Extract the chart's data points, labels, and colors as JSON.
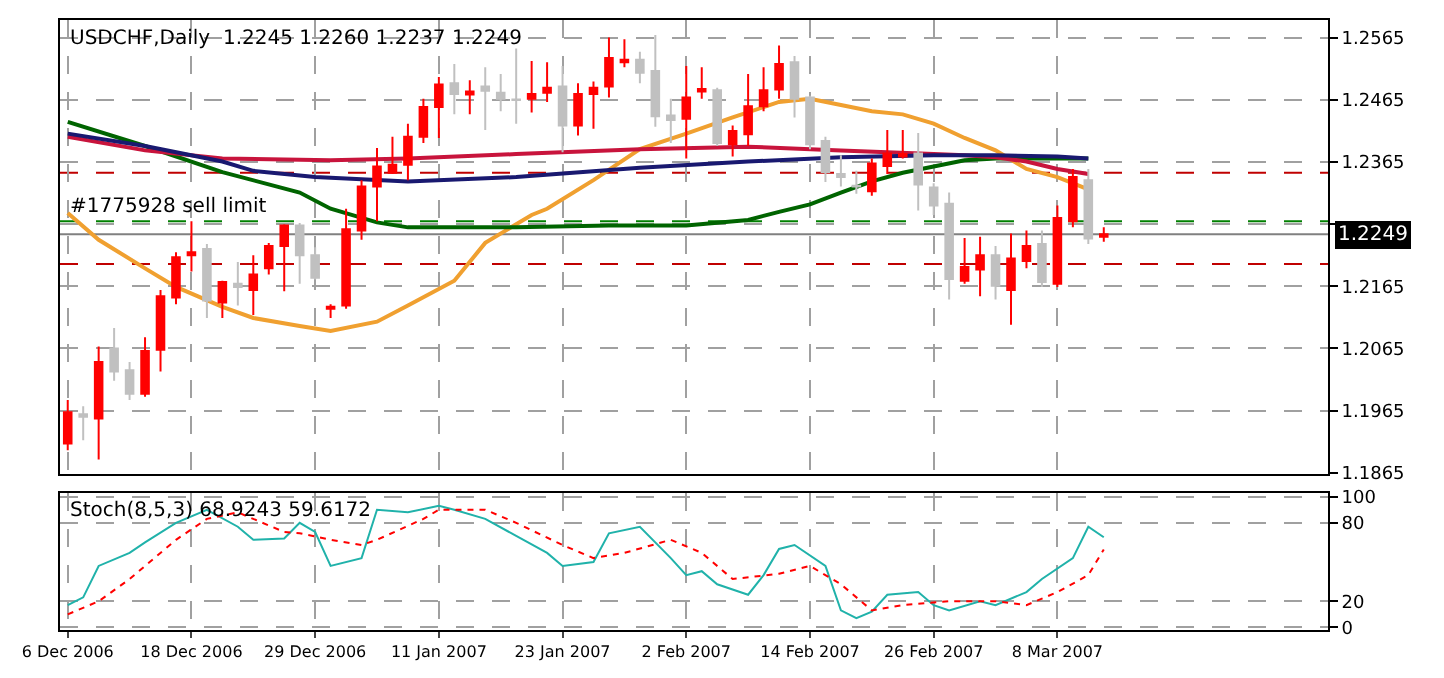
{
  "chart_data": [
    {
      "type": "candlestick",
      "title": "USDCHF,Daily  1.2245 1.2260 1.2237 1.2249",
      "tick_labels": "y",
      "grid": true,
      "marker": "none",
      "categories": [
        null,
        null,
        null,
        null,
        null,
        null,
        null,
        null,
        null,
        null,
        null,
        null,
        null,
        null,
        null,
        null,
        null,
        null,
        null,
        null,
        null,
        null,
        null,
        null,
        null,
        null,
        null,
        null,
        null,
        null,
        null,
        null,
        null,
        null,
        null,
        null,
        null,
        null,
        null,
        null,
        null,
        null,
        null,
        null,
        null,
        null,
        null,
        null,
        null,
        null,
        null,
        null,
        null,
        null,
        null,
        null,
        null,
        null,
        null,
        null,
        null,
        null,
        null,
        null,
        null,
        null,
        null,
        null,
        null,
        null,
        null,
        null,
        null,
        null,
        null,
        null,
        null,
        null,
        null,
        null,
        null,
        null
      ],
      "ylim": [
        1.1862,
        1.2594
      ],
      "yticks": [
        1.1865,
        1.1965,
        1.2065,
        1.2165,
        {
          "value": 1.2265,
          "label": null
        },
        1.2365,
        1.2465,
        1.2565
      ],
      "series": [
        {
          "type": "candlestick",
          "ohlc": [
            [
              1.1912,
              1.1982,
              1.1901,
              1.1962
            ],
            [
              1.1959,
              1.1972,
              1.1917,
              1.1955
            ],
            [
              1.1952,
              1.2068,
              1.1886,
              1.2043
            ],
            [
              1.2065,
              1.2098,
              1.2013,
              1.2028
            ],
            [
              1.203,
              1.2043,
              1.1982,
              1.1992
            ],
            [
              1.1992,
              1.2083,
              1.1987,
              1.2061
            ],
            [
              1.2063,
              1.2159,
              1.2028,
              1.2149
            ],
            [
              1.2147,
              1.222,
              1.2136,
              1.2212
            ],
            [
              1.2215,
              1.227,
              1.2189,
              1.222
            ],
            [
              1.2225,
              1.2233,
              1.2114,
              1.2142
            ],
            [
              1.2139,
              1.2174,
              1.2114,
              1.2172
            ],
            [
              1.2169,
              1.2204,
              1.2134,
              1.2164
            ],
            [
              1.2159,
              1.2215,
              1.2119,
              1.2184
            ],
            [
              1.2194,
              1.2235,
              1.2184,
              1.223
            ],
            [
              1.223,
              1.2265,
              1.2157,
              1.2263
            ],
            [
              1.2263,
              1.2267,
              1.2169,
              1.2215
            ],
            [
              1.2215,
              1.2228,
              1.2176,
              1.2179
            ],
            [
              1.2129,
              1.2136,
              1.2114,
              1.2132
            ],
            [
              1.2134,
              1.229,
              1.2129,
              1.2257
            ],
            [
              1.2255,
              1.2336,
              1.224,
              1.2326
            ],
            [
              1.2326,
              1.2388,
              1.227,
              1.2358
            ],
            [
              1.2348,
              1.2406,
              1.2346,
              1.2361
            ],
            [
              1.2361,
              1.2427,
              1.2336,
              1.2406
            ],
            [
              1.2406,
              1.2467,
              1.2396,
              1.2454
            ],
            [
              1.2454,
              1.2502,
              1.2404,
              1.249
            ],
            [
              1.2492,
              1.2523,
              1.2442,
              1.2475
            ],
            [
              1.2474,
              1.2497,
              1.2442,
              1.2479
            ],
            [
              1.2487,
              1.2518,
              1.2417,
              1.248
            ],
            [
              1.2477,
              1.2507,
              1.2447,
              1.2467
            ],
            [
              1.2466,
              1.2548,
              1.2427,
              1.2465
            ],
            [
              1.2467,
              1.2528,
              1.2445,
              1.2475
            ],
            [
              1.2477,
              1.2526,
              1.2462,
              1.2485
            ],
            [
              1.2487,
              1.252,
              1.2381,
              1.2424
            ],
            [
              1.2424,
              1.2492,
              1.2408,
              1.2475
            ],
            [
              1.2475,
              1.2495,
              1.2419,
              1.2485
            ],
            [
              1.2487,
              1.2566,
              1.2469,
              1.2533
            ],
            [
              1.2526,
              1.2563,
              1.2518,
              1.253
            ],
            [
              1.253,
              1.2543,
              1.2492,
              1.2509
            ],
            [
              1.2512,
              1.257,
              1.2422,
              1.2439
            ],
            [
              1.244,
              1.2467,
              1.2396,
              1.2433
            ],
            [
              1.2435,
              1.252,
              1.2371,
              1.2469
            ],
            [
              1.2479,
              1.2518,
              1.2467,
              1.2483
            ],
            [
              1.2481,
              1.2485,
              1.2391,
              1.2396
            ],
            [
              1.2394,
              1.2424,
              1.2374,
              1.2415
            ],
            [
              1.241,
              1.2507,
              1.2391,
              1.2455
            ],
            [
              1.2455,
              1.2518,
              1.2447,
              1.2481
            ],
            [
              1.2482,
              1.2553,
              1.2467,
              1.2523
            ],
            [
              1.2526,
              1.2536,
              1.2437,
              1.2467
            ],
            [
              1.2469,
              1.2472,
              1.2386,
              1.2394
            ],
            [
              1.2399,
              1.2406,
              1.2333,
              1.2349
            ],
            [
              1.2346,
              1.2376,
              1.2326,
              1.2341
            ],
            [
              1.2327,
              1.2351,
              1.2314,
              1.2326
            ],
            [
              1.2318,
              1.2371,
              1.2311,
              1.2363
            ],
            [
              1.2359,
              1.2417,
              1.2346,
              1.2379
            ],
            [
              1.2374,
              1.2417,
              1.2371,
              1.2378
            ],
            [
              1.2379,
              1.2412,
              1.2287,
              1.2329
            ],
            [
              1.2324,
              1.2331,
              1.228,
              1.2295
            ],
            [
              1.2298,
              1.2316,
              1.2144,
              1.2177
            ],
            [
              1.2174,
              1.2243,
              1.2169,
              1.2196
            ],
            [
              1.2192,
              1.2245,
              1.2149,
              1.2215
            ],
            [
              1.2215,
              1.223,
              1.2144,
              1.2166
            ],
            [
              1.2159,
              1.225,
              1.2103,
              1.221
            ],
            [
              1.2206,
              1.2255,
              1.2194,
              1.223
            ],
            [
              1.2233,
              1.2255,
              1.2164,
              1.2172
            ],
            [
              1.2169,
              1.2295,
              1.2164,
              1.2275
            ],
            [
              1.227,
              1.2354,
              1.226,
              1.2341
            ],
            [
              1.2336,
              1.2354,
              1.2233,
              1.2242
            ],
            [
              1.2245,
              1.226,
              1.2237,
              1.2249
            ],
            null,
            null,
            null,
            null,
            null,
            null,
            null,
            null,
            null,
            null,
            null,
            null,
            null,
            null
          ],
          "colors": [
            "#ff0000",
            "#c0c0c0",
            "#ff0000",
            "#c0c0c0",
            "#c0c0c0",
            "#ff0000",
            "#ff0000",
            "#ff0000",
            "#ff0000",
            "#c0c0c0",
            "#ff0000",
            "#c0c0c0",
            "#ff0000",
            "#ff0000",
            "#ff0000",
            "#c0c0c0",
            "#c0c0c0",
            "#ff0000",
            "#ff0000",
            "#ff0000",
            "#ff0000",
            "#ff0000",
            "#ff0000",
            "#ff0000",
            "#ff0000",
            "#c0c0c0",
            "#ff0000",
            "#c0c0c0",
            "#c0c0c0",
            "#c0c0c0",
            "#ff0000",
            "#ff0000",
            "#c0c0c0",
            "#ff0000",
            "#ff0000",
            "#ff0000",
            "#ff0000",
            "#c0c0c0",
            "#c0c0c0",
            "#c0c0c0",
            "#ff0000",
            "#ff0000",
            "#c0c0c0",
            "#ff0000",
            "#ff0000",
            "#ff0000",
            "#ff0000",
            "#c0c0c0",
            "#c0c0c0",
            "#c0c0c0",
            "#c0c0c0",
            "#c0c0c0",
            "#ff0000",
            "#ff0000",
            "#ff0000",
            "#c0c0c0",
            "#c0c0c0",
            "#c0c0c0",
            "#ff0000",
            "#ff0000",
            "#c0c0c0",
            "#ff0000",
            "#ff0000",
            "#c0c0c0",
            "#ff0000",
            "#ff0000",
            "#c0c0c0",
            "#ff0000",
            null,
            null,
            null,
            null,
            null,
            null,
            null,
            null,
            null,
            null,
            null,
            null,
            null,
            null
          ]
        },
        {
          "type": "line",
          "color": "#f0a030",
          "values": [
            1.2283,
            null,
            1.224,
            null,
            null,
            1.2194,
            null,
            1.2164,
            null,
            null,
            1.2132,
            null,
            1.2114,
            null,
            null,
            1.2101,
            null,
            1.2093,
            null,
            null,
            1.2108,
            null,
            1.2134,
            null,
            null,
            1.2174,
            null,
            1.2235,
            null,
            null,
            1.228,
            1.229,
            null,
            null,
            1.2336,
            null,
            null,
            1.2386,
            null,
            null,
            1.2411,
            null,
            null,
            1.2437,
            null,
            null,
            1.2462,
            null,
            1.2467,
            null,
            1.2457,
            null,
            1.2447,
            null,
            1.2442,
            null,
            1.2427,
            null,
            1.2404,
            null,
            1.2384,
            null,
            1.2354,
            null,
            1.2341,
            null,
            1.2321,
            null,
            null,
            null,
            null,
            null,
            null,
            null,
            null,
            null,
            null,
            null,
            null,
            null,
            null,
            null
          ]
        },
        {
          "type": "line",
          "color": "#006400",
          "values": [
            1.243,
            null,
            null,
            null,
            null,
            1.2391,
            null,
            null,
            null,
            null,
            1.2349,
            null,
            null,
            null,
            null,
            1.2316,
            null,
            1.229,
            null,
            null,
            1.2268,
            null,
            1.226,
            null,
            null,
            null,
            null,
            null,
            null,
            1.226,
            null,
            null,
            null,
            null,
            null,
            1.2263,
            null,
            null,
            null,
            null,
            1.2263,
            null,
            null,
            null,
            1.2272,
            null,
            1.2285,
            null,
            1.2297,
            null,
            1.2316,
            null,
            1.2334,
            null,
            1.2348,
            null,
            1.2358,
            null,
            1.2368,
            null,
            1.2371,
            null,
            null,
            null,
            null,
            null,
            1.2371,
            null,
            null,
            null,
            null,
            null,
            null,
            null,
            null,
            null,
            null,
            null,
            null,
            null,
            null,
            null
          ]
        },
        {
          "type": "line",
          "color": "#c8143c",
          "values": [
            1.2406,
            null,
            null,
            null,
            null,
            1.2384,
            null,
            null,
            null,
            null,
            1.2371,
            null,
            null,
            null,
            null,
            null,
            null,
            1.2368,
            null,
            null,
            null,
            null,
            1.2371,
            null,
            null,
            null,
            null,
            null,
            null,
            1.2378,
            null,
            null,
            null,
            null,
            null,
            null,
            null,
            1.2386,
            null,
            null,
            null,
            null,
            null,
            null,
            1.239,
            null,
            null,
            null,
            null,
            null,
            1.2384,
            null,
            null,
            null,
            null,
            null,
            1.2378,
            null,
            1.2376,
            null,
            1.2373,
            null,
            1.2366,
            null,
            1.2354,
            null,
            1.2346,
            null,
            null,
            null,
            null,
            null,
            null,
            null,
            null,
            null,
            null,
            null,
            null,
            null,
            null,
            null
          ]
        },
        {
          "type": "line",
          "color": "#191970",
          "values": [
            1.2411,
            null,
            null,
            null,
            null,
            1.2391,
            null,
            null,
            null,
            null,
            1.2366,
            null,
            1.2351,
            null,
            null,
            null,
            1.2341,
            null,
            null,
            null,
            null,
            null,
            1.2334,
            null,
            null,
            null,
            null,
            null,
            null,
            1.2341,
            null,
            null,
            null,
            null,
            null,
            null,
            null,
            1.2356,
            null,
            null,
            null,
            null,
            null,
            null,
            1.2366,
            null,
            null,
            null,
            null,
            null,
            1.2373,
            null,
            null,
            null,
            null,
            null,
            1.2376,
            null,
            null,
            null,
            1.2376,
            null,
            null,
            null,
            1.2374,
            null,
            1.2371,
            null,
            null,
            null,
            null,
            null,
            null,
            null,
            null,
            null,
            null,
            null,
            null,
            null,
            null,
            null
          ]
        }
      ],
      "ref_lines": [
        {
          "axis": "y",
          "value": 1.2348,
          "color": "#c00000",
          "line_style": "dashed"
        },
        {
          "axis": "y",
          "value": 1.2201,
          "color": "#c00000",
          "line_style": "dashed"
        },
        {
          "axis": "y",
          "value": 1.227,
          "label": "#1775928 sell limit",
          "color": "#008000",
          "line_style": "dashed"
        },
        {
          "axis": "y",
          "value": 1.2249,
          "label": "1.2249",
          "color": "#808080",
          "line_style": "solid"
        }
      ]
    },
    {
      "type": "line",
      "title": "Stoch(8,5,3) 68.9243 59.6172",
      "grid": true,
      "marker": "none",
      "categories": [
        "6 Dec 2006",
        null,
        null,
        null,
        null,
        null,
        null,
        null,
        "18 Dec 2006",
        null,
        null,
        null,
        null,
        null,
        null,
        null,
        "29 Dec 2006",
        null,
        null,
        null,
        null,
        null,
        null,
        null,
        "11 Jan 2007",
        null,
        null,
        null,
        null,
        null,
        null,
        null,
        "23 Jan 2007",
        null,
        null,
        null,
        null,
        null,
        null,
        null,
        "2 Feb 2007",
        null,
        null,
        null,
        null,
        null,
        null,
        null,
        "14 Feb 2007",
        null,
        null,
        null,
        null,
        null,
        null,
        null,
        "26 Feb 2007",
        null,
        null,
        null,
        null,
        null,
        null,
        null,
        "8 Mar 2007",
        null,
        null,
        null,
        null,
        null,
        null,
        null,
        null,
        null,
        null,
        null,
        null,
        null,
        null,
        null,
        null,
        null
      ],
      "ylim": [
        -2,
        103
      ],
      "yticks": [
        0,
        20,
        80,
        100
      ],
      "series": [
        {
          "type": "line",
          "color": "#20b2aa",
          "line_style": "solid",
          "values": [
            17,
            23,
            47,
            null,
            57,
            65,
            null,
            80,
            null,
            90,
            null,
            77,
            67,
            null,
            68,
            80,
            73,
            47,
            null,
            53,
            90,
            null,
            88,
            null,
            93,
            90,
            null,
            83,
            null,
            70,
            null,
            57,
            47,
            null,
            50,
            72,
            null,
            77,
            null,
            53,
            40,
            43,
            33,
            null,
            25,
            40,
            60,
            63,
            null,
            47,
            13,
            7,
            12,
            25,
            null,
            27,
            17,
            13,
            null,
            20,
            17,
            null,
            27,
            37,
            null,
            53,
            77,
            68.9243,
            null,
            null,
            null,
            null,
            null,
            null,
            null,
            null,
            null,
            null,
            null,
            null,
            null,
            null
          ]
        },
        {
          "type": "line",
          "color": "#ff0000",
          "line_style": "dotted",
          "values": [
            10,
            null,
            20,
            null,
            37,
            null,
            null,
            67,
            null,
            83,
            null,
            88,
            null,
            null,
            73,
            72,
            null,
            67,
            null,
            63,
            67,
            null,
            null,
            83,
            90,
            null,
            null,
            90,
            null,
            80,
            null,
            null,
            63,
            null,
            53,
            null,
            57,
            null,
            null,
            67,
            null,
            57,
            null,
            37,
            null,
            null,
            41,
            null,
            47,
            null,
            33,
            null,
            13,
            null,
            17,
            null,
            null,
            20,
            null,
            null,
            20,
            null,
            17,
            null,
            27,
            null,
            40,
            59.6172,
            null,
            null,
            null,
            null,
            null,
            null,
            null,
            null,
            null,
            null,
            null,
            null,
            null,
            null
          ]
        }
      ]
    }
  ]
}
